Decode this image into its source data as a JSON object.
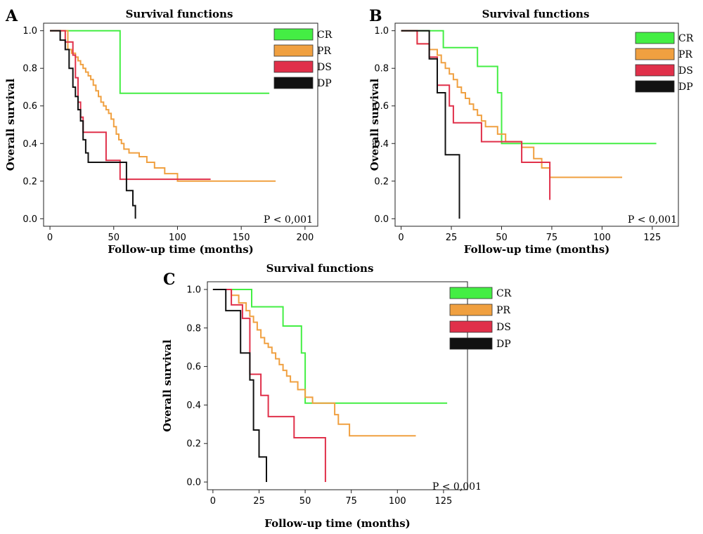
{
  "chart_data": [
    {
      "id": "a",
      "type": "line",
      "step": true,
      "panel_label": "A",
      "title": "Survival functions",
      "xlabel": "Follow-up time (months)",
      "ylabel": "Overall survival",
      "xlim": [
        -5,
        210
      ],
      "ylim": [
        -0.04,
        1.04
      ],
      "xticks": [
        0,
        50,
        100,
        150,
        200
      ],
      "yticks": [
        0.0,
        0.2,
        0.4,
        0.6,
        0.8,
        1.0
      ],
      "ytick_labels": [
        "0.0",
        "0.2",
        "0.4",
        "0.6",
        "0.8",
        "1.0"
      ],
      "annotation": "P < 0,001",
      "legend_position": "top-right",
      "series": [
        {
          "name": "CR",
          "color": "#44ee44",
          "x": [
            0,
            55,
            172
          ],
          "y": [
            1.0,
            0.667,
            0.667
          ]
        },
        {
          "name": "PR",
          "color": "#f0a040",
          "x": [
            0,
            14,
            17,
            20,
            22,
            24,
            26,
            28,
            30,
            32,
            34,
            36,
            38,
            40,
            42,
            44,
            46,
            48,
            50,
            52,
            54,
            56,
            58,
            62,
            70,
            76,
            82,
            90,
            100,
            177
          ],
          "y": [
            1.0,
            0.9,
            0.88,
            0.86,
            0.84,
            0.82,
            0.8,
            0.78,
            0.76,
            0.74,
            0.71,
            0.68,
            0.65,
            0.62,
            0.6,
            0.58,
            0.56,
            0.53,
            0.49,
            0.45,
            0.42,
            0.4,
            0.37,
            0.35,
            0.33,
            0.3,
            0.27,
            0.24,
            0.2,
            0.2
          ]
        },
        {
          "name": "DS",
          "color": "#e0304a",
          "x": [
            0,
            12,
            18,
            20,
            22,
            24,
            26,
            30,
            44,
            55,
            126
          ],
          "y": [
            1.0,
            0.94,
            0.87,
            0.75,
            0.62,
            0.54,
            0.46,
            0.46,
            0.31,
            0.21,
            0.21
          ]
        },
        {
          "name": "DP",
          "color": "#111111",
          "x": [
            0,
            8,
            12,
            15,
            18,
            20,
            22,
            24,
            26,
            28,
            30,
            55,
            60,
            65,
            67
          ],
          "y": [
            1.0,
            0.95,
            0.9,
            0.8,
            0.7,
            0.65,
            0.58,
            0.52,
            0.42,
            0.35,
            0.3,
            0.3,
            0.15,
            0.07,
            0.0
          ]
        }
      ]
    },
    {
      "id": "b",
      "type": "line",
      "step": true,
      "panel_label": "B",
      "title": "Survival functions",
      "xlabel": "Follow-up time (months)",
      "ylabel": "Overall survival",
      "xlim": [
        -3,
        138
      ],
      "ylim": [
        -0.04,
        1.04
      ],
      "xticks": [
        0,
        25,
        50,
        75,
        100,
        125
      ],
      "yticks": [
        0.0,
        0.2,
        0.4,
        0.6,
        0.8,
        1.0
      ],
      "ytick_labels": [
        "0.0",
        "0.2",
        "0.4",
        "0.6",
        "0.8",
        "1.0"
      ],
      "annotation": "P < 0,001",
      "legend_position": "top-right",
      "series": [
        {
          "name": "CR",
          "color": "#44ee44",
          "x": [
            0,
            21,
            38,
            48,
            50,
            127
          ],
          "y": [
            1.0,
            0.91,
            0.81,
            0.67,
            0.4,
            0.4
          ]
        },
        {
          "name": "PR",
          "color": "#f0a040",
          "x": [
            0,
            8,
            14,
            18,
            20,
            22,
            24,
            26,
            28,
            30,
            32,
            34,
            36,
            38,
            40,
            42,
            44,
            48,
            52,
            56,
            60,
            66,
            70,
            74,
            110
          ],
          "y": [
            1.0,
            0.93,
            0.9,
            0.87,
            0.83,
            0.8,
            0.77,
            0.74,
            0.7,
            0.67,
            0.64,
            0.61,
            0.58,
            0.55,
            0.52,
            0.49,
            0.49,
            0.45,
            0.41,
            0.41,
            0.38,
            0.32,
            0.27,
            0.22,
            0.22
          ]
        },
        {
          "name": "DS",
          "color": "#e0304a",
          "x": [
            0,
            8,
            14,
            18,
            24,
            26,
            40,
            54,
            60,
            74
          ],
          "y": [
            1.0,
            0.93,
            0.86,
            0.71,
            0.6,
            0.51,
            0.41,
            0.41,
            0.3,
            0.1
          ]
        },
        {
          "name": "DP",
          "color": "#111111",
          "x": [
            0,
            14,
            18,
            22,
            29,
            29
          ],
          "y": [
            1.0,
            0.85,
            0.67,
            0.34,
            0.34,
            0.0
          ]
        }
      ]
    },
    {
      "id": "c",
      "type": "line",
      "step": true,
      "panel_label": "C",
      "title": "Survival functions",
      "xlabel": "Follow-up time (months)",
      "ylabel": "Overall survival",
      "xlim": [
        -3,
        138
      ],
      "ylim": [
        -0.04,
        1.04
      ],
      "xticks": [
        0,
        25,
        50,
        75,
        100,
        125
      ],
      "yticks": [
        0.0,
        0.2,
        0.4,
        0.6,
        0.8,
        1.0
      ],
      "ytick_labels": [
        "0.0",
        "0.2",
        "0.4",
        "0.6",
        "0.8",
        "1.0"
      ],
      "annotation": "P < 0,001",
      "legend_position": "top-right",
      "series": [
        {
          "name": "CR",
          "color": "#44ee44",
          "x": [
            0,
            21,
            38,
            48,
            50,
            127
          ],
          "y": [
            1.0,
            0.91,
            0.81,
            0.67,
            0.41,
            0.41
          ]
        },
        {
          "name": "PR",
          "color": "#f0a040",
          "x": [
            0,
            10,
            14,
            18,
            20,
            22,
            24,
            26,
            28,
            30,
            32,
            34,
            36,
            38,
            40,
            42,
            46,
            50,
            54,
            66,
            68,
            74,
            110
          ],
          "y": [
            1.0,
            0.97,
            0.93,
            0.89,
            0.86,
            0.83,
            0.79,
            0.75,
            0.72,
            0.7,
            0.67,
            0.64,
            0.61,
            0.58,
            0.55,
            0.52,
            0.48,
            0.44,
            0.41,
            0.35,
            0.3,
            0.24,
            0.24
          ]
        },
        {
          "name": "DS",
          "color": "#e0304a",
          "x": [
            0,
            10,
            16,
            20,
            26,
            30,
            44,
            61,
            61
          ],
          "y": [
            1.0,
            0.92,
            0.85,
            0.56,
            0.45,
            0.34,
            0.23,
            0.23,
            0.0
          ]
        },
        {
          "name": "DP",
          "color": "#111111",
          "x": [
            0,
            7,
            15,
            20,
            22,
            25,
            29,
            29
          ],
          "y": [
            1.0,
            0.89,
            0.67,
            0.53,
            0.27,
            0.13,
            0.13,
            0.0
          ]
        }
      ]
    }
  ]
}
